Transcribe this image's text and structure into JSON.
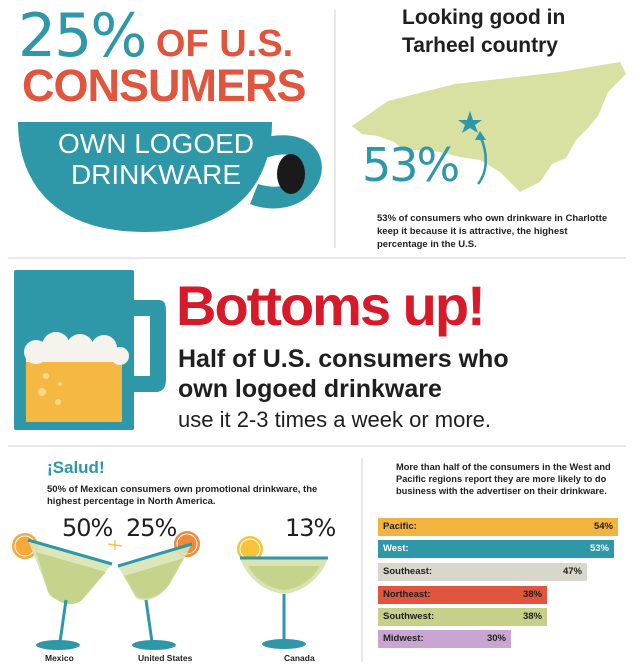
{
  "headline": {
    "percent": "25%",
    "of_us": " OF U.S.",
    "consumers": "CONSUMERS",
    "mug_line1": "OWN LOGOED",
    "mug_line2": "DRINKWARE"
  },
  "nc_panel": {
    "title_line1": "Looking good in",
    "title_line2": "Tarheel country",
    "percent": "53%",
    "caption": "53% of consumers who own drinkware in Charlotte keep it because it is attractive, the highest percentage in the U.S."
  },
  "bottoms_up": {
    "title": "Bottoms up!",
    "line1": "Half of U.S. consumers who",
    "line2": "own logoed drinkware",
    "line3": "use it 2-3 times a week or more."
  },
  "salud": {
    "title": "¡Salud!",
    "caption": "50% of Mexican consumers own promotional drinkware, the highest percentage in North America.",
    "glasses": [
      {
        "pct": "50%",
        "country": "Mexico",
        "value": 50
      },
      {
        "pct": "25%",
        "country": "United States",
        "value": 25
      },
      {
        "pct": "13%",
        "country": "Canada",
        "value": 13
      }
    ]
  },
  "regions": {
    "caption": "More than half of the consumers in the West and Pacific regions report they are more likely to do business with the advertiser on their drinkware.",
    "bars": [
      {
        "label": "Pacific:",
        "value_label": "54%",
        "value": 54,
        "color": "#f3b43f",
        "text_color": "#1f1f1f"
      },
      {
        "label": "West:",
        "value_label": "53%",
        "value": 53,
        "color": "#2e97a8",
        "text_color": "#ffffff"
      },
      {
        "label": "Southeast:",
        "value_label": "47%",
        "value": 47,
        "color": "#d9d6cb",
        "text_color": "#1f1f1f"
      },
      {
        "label": "Northeast:",
        "value_label": "38%",
        "value": 38,
        "color": "#e0553d",
        "text_color": "#1f1f1f"
      },
      {
        "label": "Southwest:",
        "value_label": "38%",
        "value": 38,
        "color": "#c8cf8a",
        "text_color": "#1f1f1f"
      },
      {
        "label": "Midwest:",
        "value_label": "30%",
        "value": 30,
        "color": "#c9a6d2",
        "text_color": "#1f1f1f"
      }
    ]
  },
  "colors": {
    "teal": "#2e97a8",
    "red_orange": "#e0553d",
    "bright_red": "#d71a2a",
    "map_green": "#d8e0a2",
    "beer_amber": "#f4b843",
    "margarita_green": "#c6d38a",
    "orange_slice": "#f08a3c",
    "lime_slice": "#c5d84c"
  }
}
